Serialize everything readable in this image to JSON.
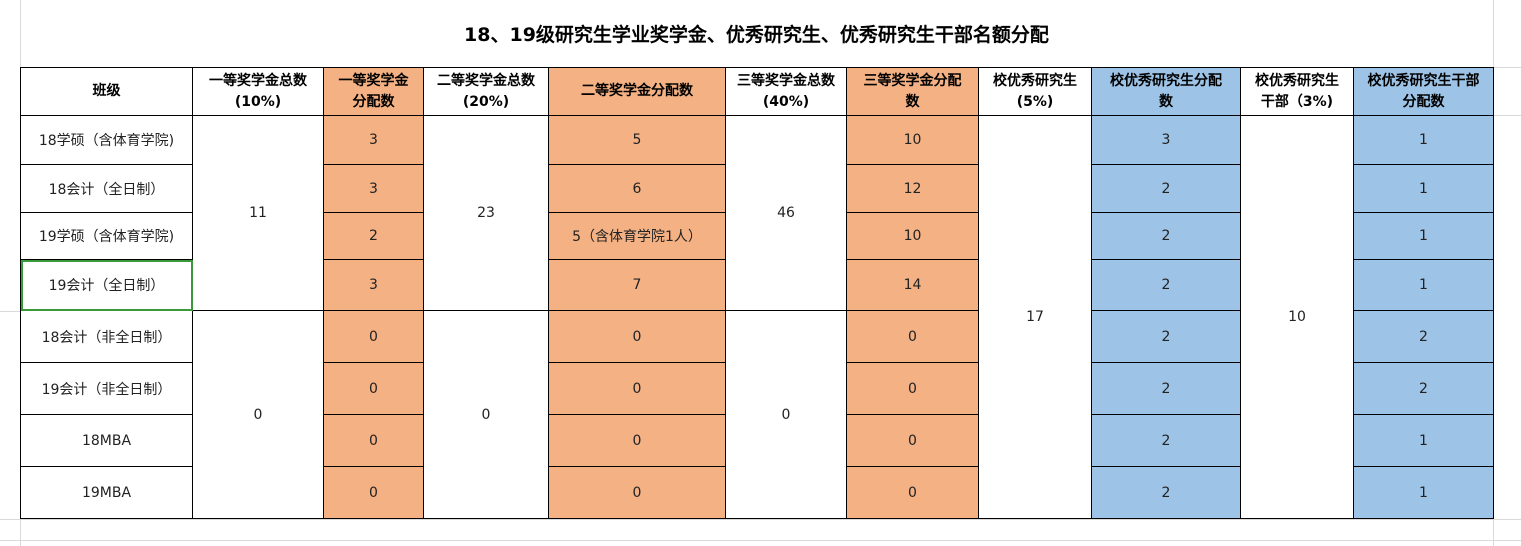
{
  "title": "18、19级研究生学业奖学金、优秀研究生、优秀研究生干部名额分配",
  "colors": {
    "orange": "#F4B183",
    "blue": "#9DC3E6",
    "selection": "#3a9a3a"
  },
  "headers": [
    [
      "班级"
    ],
    [
      "一等奖学金总数",
      "(10%)"
    ],
    [
      "一等奖学金",
      "分配数"
    ],
    [
      "二等奖学金总数",
      "(20%)"
    ],
    [
      "二等奖学金分配数"
    ],
    [
      "三等奖学金总数",
      "(40%)"
    ],
    [
      "三等奖学金分配",
      "数"
    ],
    [
      "校优秀研究生",
      "(5%)"
    ],
    [
      "校优秀研究生分配",
      "数"
    ],
    [
      "校优秀研究生",
      "干部（3%)"
    ],
    [
      "校优秀研究生干部",
      "分配数"
    ]
  ],
  "merged": {
    "first_total_a": "11",
    "first_total_b": "0",
    "second_total_a": "23",
    "second_total_b": "0",
    "third_total_a": "46",
    "third_total_b": "0",
    "excellent_total": "17",
    "cadre_total": "10"
  },
  "rows": [
    {
      "class": "18学硕（含体育学院)",
      "first": "3",
      "second": "5",
      "third": "10",
      "excellent": "3",
      "cadre": "1"
    },
    {
      "class": "18会计（全日制）",
      "first": "3",
      "second": "6",
      "third": "12",
      "excellent": "2",
      "cadre": "1"
    },
    {
      "class": "19学硕（含体育学院)",
      "first": "2",
      "second": "5（含体育学院1人）",
      "third": "10",
      "excellent": "2",
      "cadre": "1"
    },
    {
      "class": "19会计（全日制）",
      "first": "3",
      "second": "7",
      "third": "14",
      "excellent": "2",
      "cadre": "1"
    },
    {
      "class": "18会计（非全日制）",
      "first": "0",
      "second": "0",
      "third": "0",
      "excellent": "2",
      "cadre": "2"
    },
    {
      "class": "19会计（非全日制）",
      "first": "0",
      "second": "0",
      "third": "0",
      "excellent": "2",
      "cadre": "2"
    },
    {
      "class": "18MBA",
      "first": "0",
      "second": "0",
      "third": "0",
      "excellent": "2",
      "cadre": "1"
    },
    {
      "class": "19MBA",
      "first": "0",
      "second": "0",
      "third": "0",
      "excellent": "2",
      "cadre": "1"
    }
  ]
}
